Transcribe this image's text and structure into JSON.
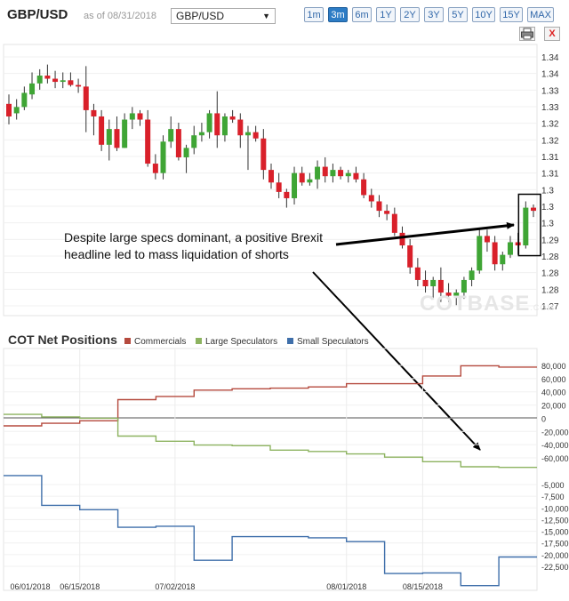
{
  "header": {
    "title": "GBP/USD",
    "as_of": "as of 08/31/2018",
    "selected_pair": "GBP/USD",
    "ranges": [
      "1m",
      "3m",
      "6m",
      "1Y",
      "2Y",
      "3Y",
      "5Y",
      "10Y",
      "15Y",
      "MAX"
    ],
    "active_range": "3m",
    "print_icon": "printer-icon",
    "close_label": "X"
  },
  "watermark": {
    "brand": "COTBASE",
    "suffix": ".COM"
  },
  "annotation": {
    "text": "Despite large specs dominant, a positive Brexit headline led to mass liquidation of shorts"
  },
  "colors": {
    "up": "#3fa535",
    "down": "#d9202a",
    "commercials": "#b54a3e",
    "large_speculators": "#8db360",
    "small_speculators": "#3f6faa"
  },
  "chart_data": [
    {
      "type": "candlestick",
      "title": "GBP/USD",
      "y_tick_labels": [
        "1.34",
        "1.34",
        "1.33",
        "1.33",
        "1.32",
        "1.32",
        "1.31",
        "1.31",
        "1.3",
        "1.3",
        "1.3",
        "1.29",
        "1.28",
        "1.28",
        "1.28",
        "1.27"
      ],
      "ylim": [
        1.2675,
        1.3475
      ],
      "ohlc": [
        [
          1.332,
          1.335,
          1.3255,
          1.328
        ],
        [
          1.329,
          1.3335,
          1.327,
          1.331
        ],
        [
          1.331,
          1.3375,
          1.33,
          1.3355
        ],
        [
          1.335,
          1.342,
          1.3335,
          1.3385
        ],
        [
          1.3385,
          1.343,
          1.3365,
          1.341
        ],
        [
          1.341,
          1.3445,
          1.3385,
          1.34
        ],
        [
          1.34,
          1.3425,
          1.337,
          1.339
        ],
        [
          1.339,
          1.342,
          1.337,
          1.3395
        ],
        [
          1.3395,
          1.342,
          1.3375,
          1.338
        ],
        [
          1.338,
          1.34,
          1.3355,
          1.3375
        ],
        [
          1.3375,
          1.344,
          1.323,
          1.33
        ],
        [
          1.33,
          1.332,
          1.322,
          1.328
        ],
        [
          1.328,
          1.33,
          1.317,
          1.319
        ],
        [
          1.319,
          1.327,
          1.314,
          1.324
        ],
        [
          1.324,
          1.328,
          1.317,
          1.318
        ],
        [
          1.318,
          1.329,
          1.318,
          1.327
        ],
        [
          1.327,
          1.331,
          1.324,
          1.329
        ],
        [
          1.329,
          1.33,
          1.325,
          1.327
        ],
        [
          1.327,
          1.33,
          1.312,
          1.313
        ],
        [
          1.313,
          1.316,
          1.308,
          1.31
        ],
        [
          1.31,
          1.322,
          1.308,
          1.32
        ],
        [
          1.32,
          1.328,
          1.318,
          1.324
        ],
        [
          1.324,
          1.326,
          1.314,
          1.315
        ],
        [
          1.315,
          1.319,
          1.31,
          1.318
        ],
        [
          1.318,
          1.325,
          1.316,
          1.322
        ],
        [
          1.322,
          1.326,
          1.32,
          1.323
        ],
        [
          1.323,
          1.33,
          1.321,
          1.329
        ],
        [
          1.329,
          1.336,
          1.318,
          1.322
        ],
        [
          1.322,
          1.329,
          1.32,
          1.328
        ],
        [
          1.328,
          1.33,
          1.326,
          1.327
        ],
        [
          1.327,
          1.329,
          1.318,
          1.322
        ],
        [
          1.322,
          1.325,
          1.311,
          1.323
        ],
        [
          1.323,
          1.325,
          1.32,
          1.321
        ],
        [
          1.321,
          1.324,
          1.308,
          1.311
        ],
        [
          1.311,
          1.313,
          1.305,
          1.307
        ],
        [
          1.307,
          1.31,
          1.302,
          1.304
        ],
        [
          1.304,
          1.305,
          1.299,
          1.302
        ],
        [
          1.302,
          1.312,
          1.3,
          1.31
        ],
        [
          1.31,
          1.312,
          1.306,
          1.307
        ],
        [
          1.307,
          1.31,
          1.306,
          1.308
        ],
        [
          1.308,
          1.314,
          1.305,
          1.312
        ],
        [
          1.312,
          1.315,
          1.307,
          1.309
        ],
        [
          1.309,
          1.313,
          1.307,
          1.311
        ],
        [
          1.311,
          1.312,
          1.308,
          1.309
        ],
        [
          1.309,
          1.311,
          1.307,
          1.31
        ],
        [
          1.31,
          1.312,
          1.307,
          1.308
        ],
        [
          1.308,
          1.31,
          1.302,
          1.303
        ],
        [
          1.303,
          1.305,
          1.299,
          1.301
        ],
        [
          1.301,
          1.303,
          1.296,
          1.298
        ],
        [
          1.298,
          1.3,
          1.295,
          1.297
        ],
        [
          1.297,
          1.299,
          1.29,
          1.291
        ],
        [
          1.291,
          1.293,
          1.286,
          1.287
        ],
        [
          1.287,
          1.289,
          1.278,
          1.28
        ],
        [
          1.28,
          1.283,
          1.274,
          1.276
        ],
        [
          1.276,
          1.279,
          1.272,
          1.274
        ],
        [
          1.274,
          1.277,
          1.27,
          1.276
        ],
        [
          1.276,
          1.28,
          1.269,
          1.272
        ],
        [
          1.272,
          1.275,
          1.269,
          1.271
        ],
        [
          1.271,
          1.273,
          1.268,
          1.272
        ],
        [
          1.272,
          1.277,
          1.27,
          1.276
        ],
        [
          1.276,
          1.28,
          1.274,
          1.279
        ],
        [
          1.279,
          1.292,
          1.278,
          1.29
        ],
        [
          1.29,
          1.292,
          1.285,
          1.288
        ],
        [
          1.288,
          1.29,
          1.279,
          1.281
        ],
        [
          1.281,
          1.285,
          1.279,
          1.284
        ],
        [
          1.284,
          1.29,
          1.283,
          1.288
        ],
        [
          1.288,
          1.291,
          1.284,
          1.287
        ],
        [
          1.287,
          1.301,
          1.286,
          1.299
        ],
        [
          1.299,
          1.3,
          1.296,
          1.298
        ]
      ],
      "highlight_candles": [
        67,
        68
      ]
    },
    {
      "type": "line",
      "title": "COT Net Positions",
      "x_tick_labels": [
        "06/01/2018",
        "06/15/2018",
        "07/02/2018",
        "08/01/2018",
        "08/15/2018"
      ],
      "x_tick_weeks": [
        0.0,
        2.0,
        4.5,
        9.0,
        11.0
      ],
      "weeks": 14,
      "upper_y_tick_labels": [
        "80,000",
        "60,000",
        "40,000",
        "20,000",
        "0",
        "-20,000",
        "-40,000",
        "-60,000"
      ],
      "upper_ylim": [
        -70000,
        90000
      ],
      "lower_y_tick_labels": [
        "-5,000",
        "-7,500",
        "-10,000",
        "-12,500",
        "-15,000",
        "-17,500",
        "-20,000",
        "-22,500"
      ],
      "lower_ylim": [
        -24500,
        -3000
      ],
      "series": [
        {
          "name": "Commercials",
          "panel": "upper",
          "values": [
            -6000,
            -2000,
            2000,
            35000,
            40000,
            50000,
            52000,
            53000,
            55000,
            60000,
            60000,
            72000,
            88000,
            86000
          ]
        },
        {
          "name": "Large Speculators",
          "panel": "upper",
          "values": [
            12000,
            8000,
            6000,
            -22000,
            -30000,
            -36000,
            -37000,
            -44000,
            -46000,
            -50000,
            -55000,
            -62000,
            -70000,
            -71000
          ]
        },
        {
          "name": "Small Speculators",
          "panel": "lower",
          "values": [
            -3800,
            -9200,
            -10000,
            -13200,
            -13000,
            -19200,
            -14900,
            -14900,
            -15100,
            -15800,
            -21600,
            -21500,
            -23800,
            -18600
          ]
        }
      ]
    }
  ]
}
